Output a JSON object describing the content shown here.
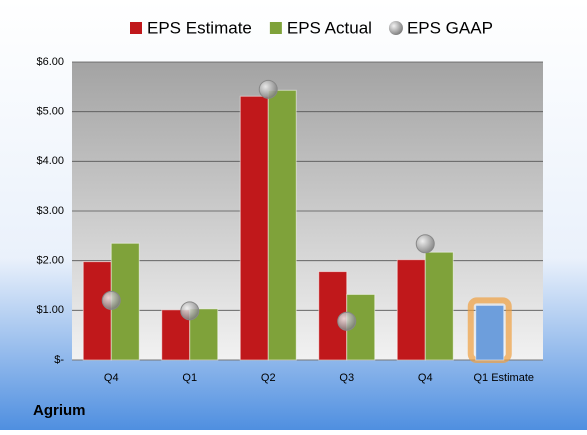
{
  "chart_data": {
    "type": "bar",
    "title": "Agrium",
    "categories": [
      "Q4",
      "Q1",
      "Q2",
      "Q3",
      "Q4",
      "Q1 Estimate"
    ],
    "series": [
      {
        "name": "EPS Estimate",
        "color": "#c0181b",
        "values": [
          1.98,
          1.01,
          5.31,
          1.78,
          2.02,
          1.1
        ],
        "point_colors": [
          null,
          null,
          null,
          null,
          null,
          "#6d9edc"
        ]
      },
      {
        "name": "EPS Actual",
        "color": "#7fa23a",
        "values": [
          2.35,
          1.03,
          5.43,
          1.32,
          2.17,
          null
        ]
      },
      {
        "name": "EPS GAAP",
        "color": "#a6a6a6",
        "type": "scatter",
        "values": [
          1.2,
          0.99,
          5.45,
          0.78,
          2.34,
          null
        ]
      }
    ],
    "ylim": [
      0,
      6
    ],
    "yticks": [
      {
        "value": 0,
        "label": "$-"
      },
      {
        "value": 1,
        "label": "$1.00"
      },
      {
        "value": 2,
        "label": "$2.00"
      },
      {
        "value": 3,
        "label": "$3.00"
      },
      {
        "value": 4,
        "label": "$4.00"
      },
      {
        "value": 5,
        "label": "$5.00"
      },
      {
        "value": 6,
        "label": "$6.00"
      }
    ],
    "grid": true,
    "legend": "top"
  }
}
